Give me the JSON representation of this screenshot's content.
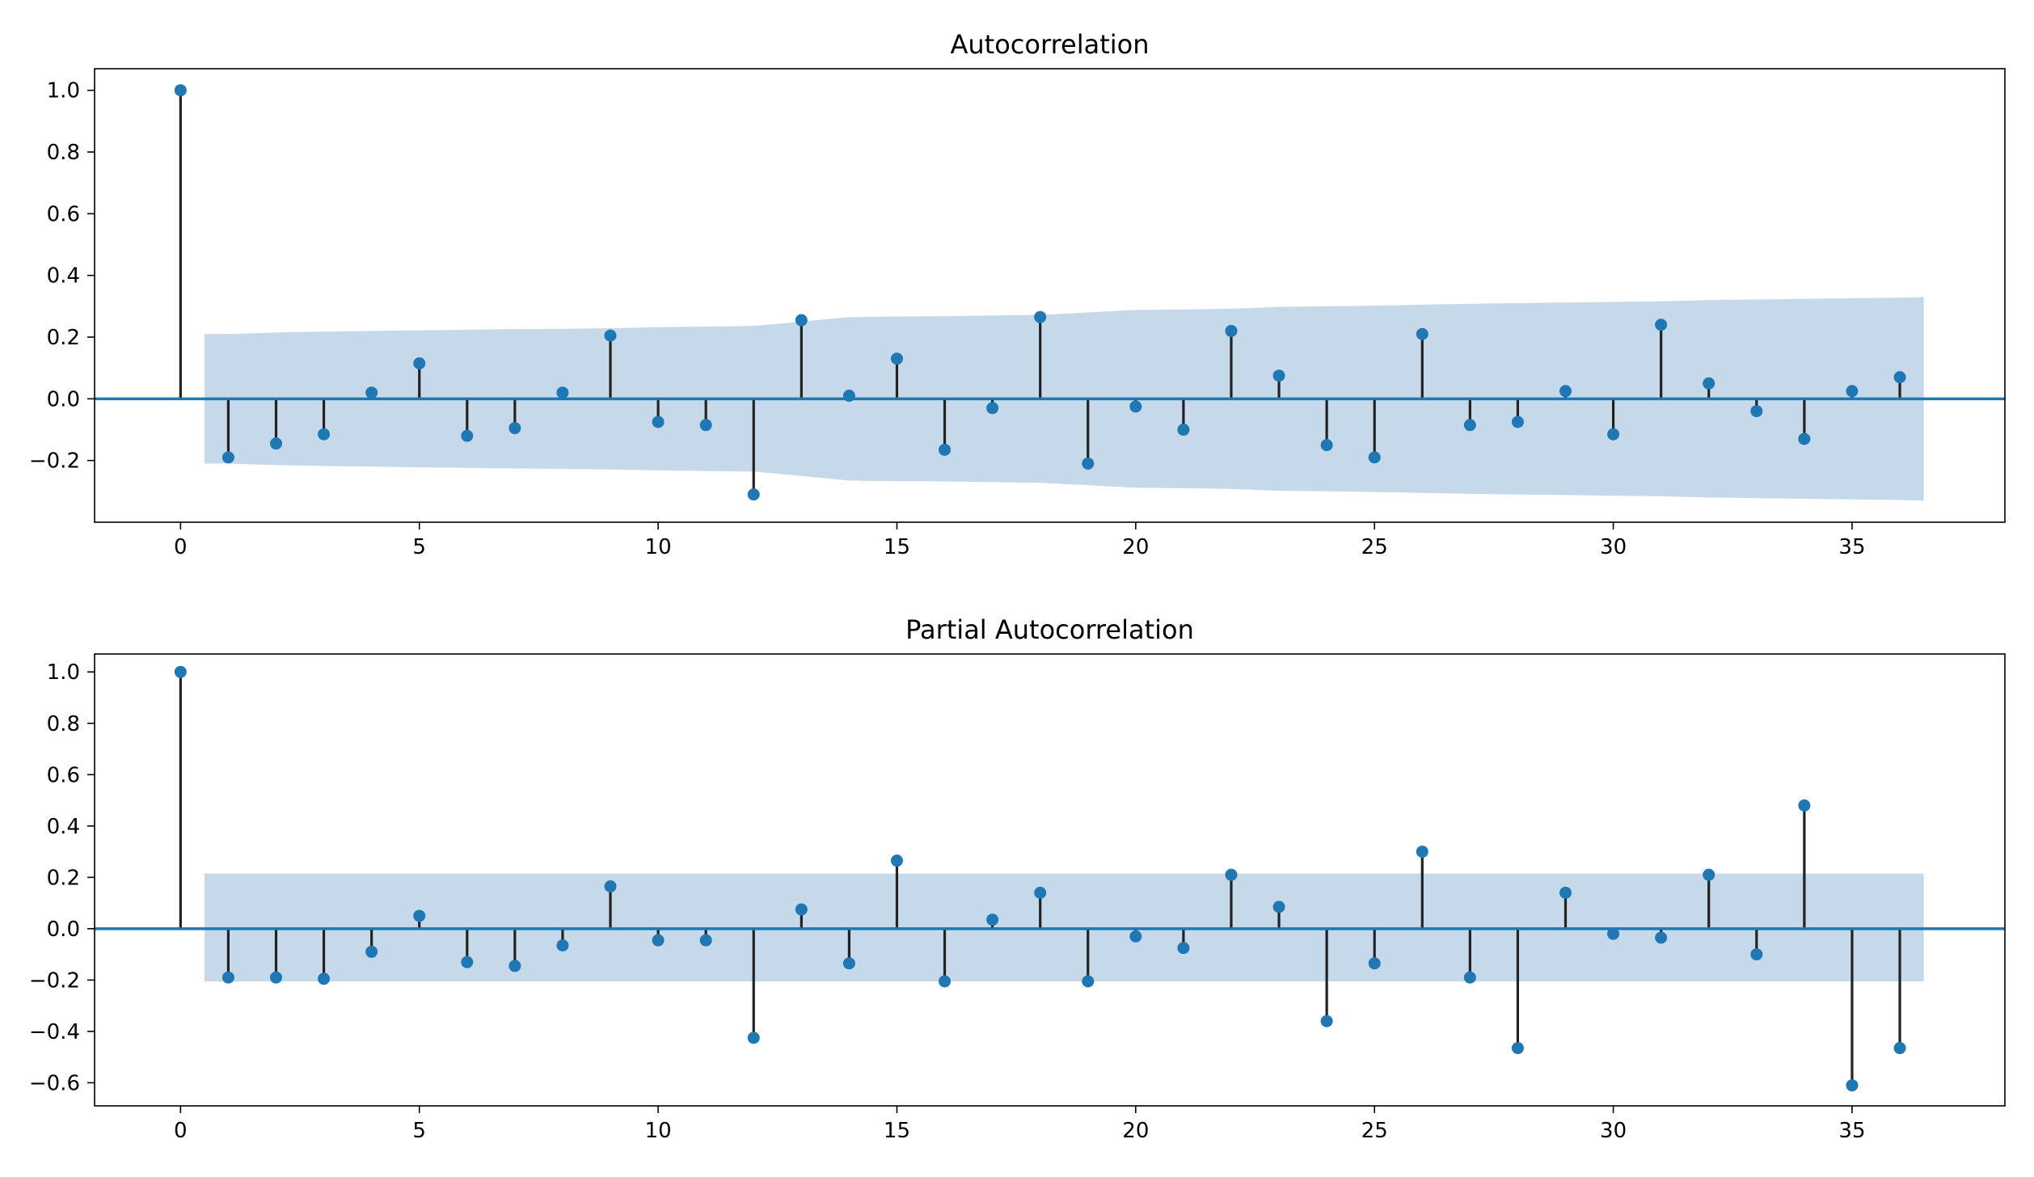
{
  "colors": {
    "marker": "#1f77b4",
    "stem": "#222222",
    "band": "#c6d9ea",
    "axis": "#000000",
    "baseline": "#1f77b4"
  },
  "chart_data": [
    {
      "type": "stem",
      "title": "Autocorrelation",
      "xlim": [
        -1.8,
        38.2
      ],
      "ylim": [
        -0.4,
        1.07
      ],
      "xticks": [
        0,
        5,
        10,
        15,
        20,
        25,
        30,
        35
      ],
      "xtick_labels": [
        "0",
        "5",
        "10",
        "15",
        "20",
        "25",
        "30",
        "35"
      ],
      "yticks": [
        1.0,
        0.8,
        0.6,
        0.4,
        0.2,
        0.0,
        -0.2
      ],
      "ytick_labels": [
        "1.0",
        "0.8",
        "0.6",
        "0.4",
        "0.2",
        "0.0",
        "−0.2"
      ],
      "lags": [
        0,
        1,
        2,
        3,
        4,
        5,
        6,
        7,
        8,
        9,
        10,
        11,
        12,
        13,
        14,
        15,
        16,
        17,
        18,
        19,
        20,
        21,
        22,
        23,
        24,
        25,
        26,
        27,
        28,
        29,
        30,
        31,
        32,
        33,
        34,
        35,
        36
      ],
      "values": [
        1.0,
        -0.19,
        -0.145,
        -0.115,
        0.02,
        0.115,
        -0.12,
        -0.095,
        0.02,
        0.205,
        -0.075,
        -0.085,
        -0.31,
        0.255,
        0.01,
        0.13,
        -0.165,
        -0.03,
        0.265,
        -0.21,
        -0.025,
        -0.1,
        0.22,
        0.075,
        -0.15,
        -0.19,
        0.21,
        -0.085,
        -0.075,
        0.025,
        -0.115,
        0.24,
        0.05,
        -0.04,
        -0.13,
        0.025,
        0.07
      ],
      "confint": {
        "lags": [
          0.5,
          1,
          2,
          3,
          4,
          5,
          6,
          7,
          8,
          9,
          10,
          11,
          12,
          13,
          14,
          15,
          16,
          17,
          18,
          19,
          20,
          21,
          22,
          23,
          24,
          25,
          26,
          27,
          28,
          29,
          30,
          31,
          32,
          33,
          34,
          35,
          36,
          36.5
        ],
        "upper": [
          0.21,
          0.21,
          0.215,
          0.218,
          0.22,
          0.222,
          0.224,
          0.226,
          0.227,
          0.229,
          0.232,
          0.234,
          0.236,
          0.25,
          0.265,
          0.267,
          0.268,
          0.27,
          0.272,
          0.28,
          0.288,
          0.29,
          0.292,
          0.298,
          0.3,
          0.302,
          0.305,
          0.308,
          0.31,
          0.312,
          0.314,
          0.316,
          0.32,
          0.322,
          0.324,
          0.326,
          0.328,
          0.33
        ],
        "lower": [
          -0.21,
          -0.21,
          -0.215,
          -0.218,
          -0.22,
          -0.222,
          -0.224,
          -0.226,
          -0.227,
          -0.229,
          -0.232,
          -0.234,
          -0.236,
          -0.25,
          -0.265,
          -0.267,
          -0.268,
          -0.27,
          -0.272,
          -0.28,
          -0.288,
          -0.29,
          -0.292,
          -0.298,
          -0.3,
          -0.302,
          -0.305,
          -0.308,
          -0.31,
          -0.312,
          -0.314,
          -0.316,
          -0.32,
          -0.322,
          -0.324,
          -0.326,
          -0.328,
          -0.33
        ]
      }
    },
    {
      "type": "stem",
      "title": "Partial Autocorrelation",
      "xlim": [
        -1.8,
        38.2
      ],
      "ylim": [
        -0.69,
        1.07
      ],
      "xticks": [
        0,
        5,
        10,
        15,
        20,
        25,
        30,
        35
      ],
      "xtick_labels": [
        "0",
        "5",
        "10",
        "15",
        "20",
        "25",
        "30",
        "35"
      ],
      "yticks": [
        1.0,
        0.8,
        0.6,
        0.4,
        0.2,
        0.0,
        -0.2,
        -0.4,
        -0.6
      ],
      "ytick_labels": [
        "1.0",
        "0.8",
        "0.6",
        "0.4",
        "0.2",
        "0.0",
        "−0.2",
        "−0.4",
        "−0.6"
      ],
      "lags": [
        0,
        1,
        2,
        3,
        4,
        5,
        6,
        7,
        8,
        9,
        10,
        11,
        12,
        13,
        14,
        15,
        16,
        17,
        18,
        19,
        20,
        21,
        22,
        23,
        24,
        25,
        26,
        27,
        28,
        29,
        30,
        31,
        32,
        33,
        34,
        35,
        36
      ],
      "values": [
        1.0,
        -0.19,
        -0.19,
        -0.195,
        -0.09,
        0.05,
        -0.13,
        -0.145,
        -0.065,
        0.165,
        -0.045,
        -0.045,
        -0.425,
        0.075,
        -0.135,
        0.265,
        -0.205,
        0.035,
        0.14,
        -0.205,
        -0.03,
        -0.075,
        0.21,
        0.085,
        -0.36,
        -0.135,
        0.3,
        -0.19,
        -0.465,
        0.14,
        -0.02,
        -0.035,
        0.21,
        -0.1,
        0.48,
        -0.61,
        -0.465
      ],
      "confint": {
        "lags": [
          0.5,
          36.5
        ],
        "upper": [
          0.215,
          0.215
        ],
        "lower": [
          -0.205,
          -0.205
        ]
      }
    }
  ]
}
